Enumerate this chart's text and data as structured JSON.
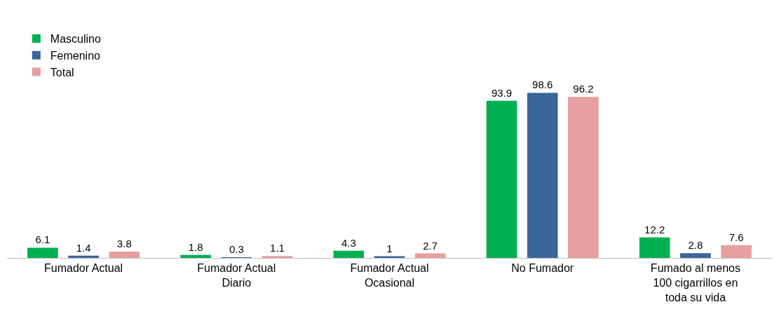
{
  "chart_data": {
    "type": "bar",
    "categories": [
      "Fumador Actual",
      "Fumador Actual\nDiario",
      "Fumador Actual\nOcasional",
      "No Fumador",
      "Fumado al menos\n100 cigarrillos en\ntoda su vida"
    ],
    "series": [
      {
        "name": "Masculino",
        "color": "#00b050",
        "values": [
          6.1,
          1.8,
          4.3,
          93.9,
          12.2
        ]
      },
      {
        "name": "Femenino",
        "color": "#3a6699",
        "values": [
          1.4,
          0.3,
          1,
          98.6,
          2.8
        ]
      },
      {
        "name": "Total",
        "color": "#e6a0a0",
        "values": [
          3.8,
          1.1,
          2.7,
          96.2,
          7.6
        ]
      }
    ],
    "data_labels": true,
    "legend": "top left"
  }
}
